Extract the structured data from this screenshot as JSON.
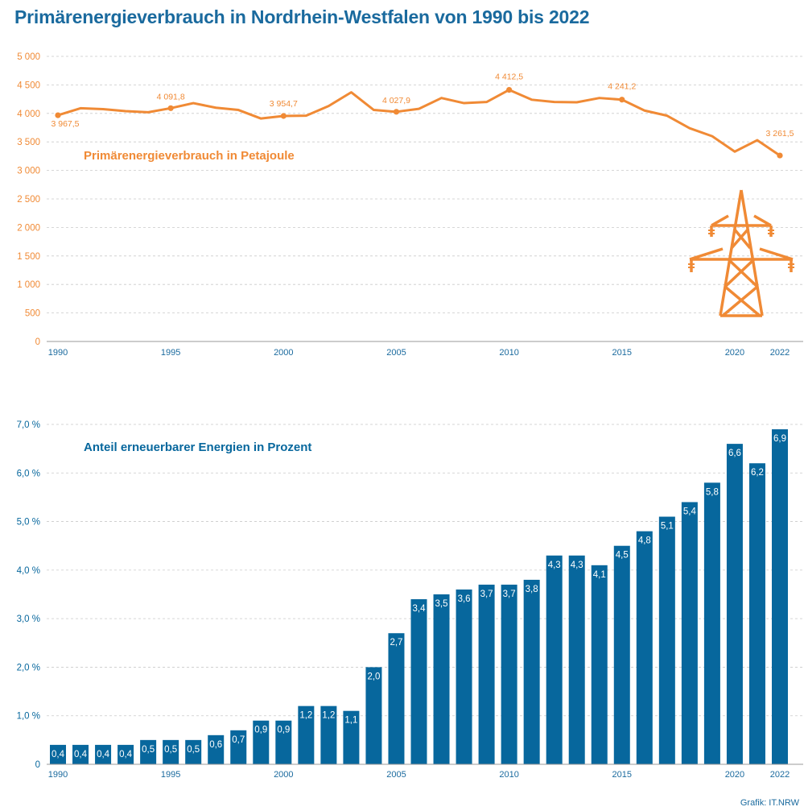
{
  "title": "Primärenergieverbrauch in Nordrhein-Westfalen von 1990 bis 2022",
  "credit": "Grafik: IT.NRW",
  "colors": {
    "orange": "#f08a35",
    "blue": "#07679d",
    "title": "#1a6a9e",
    "grid": "#c9c9c9"
  },
  "icon": "power-pylon-icon",
  "chart_data": [
    {
      "type": "line",
      "label": "Primärenergieverbrauch in Petajoule",
      "x": [
        1990,
        1991,
        1992,
        1993,
        1994,
        1995,
        1996,
        1997,
        1998,
        1999,
        2000,
        2001,
        2002,
        2003,
        2004,
        2005,
        2006,
        2007,
        2008,
        2009,
        2010,
        2011,
        2012,
        2013,
        2014,
        2015,
        2016,
        2017,
        2018,
        2019,
        2020,
        2021,
        2022
      ],
      "values": [
        3967.5,
        4090,
        4075,
        4040,
        4020,
        4091.8,
        4180,
        4100,
        4060,
        3910,
        3954.7,
        3960,
        4130,
        4370,
        4060,
        4027.9,
        4080,
        4270,
        4180,
        4200,
        4412.5,
        4240,
        4200,
        4195,
        4270,
        4241.2,
        4050,
        3960,
        3740,
        3600,
        3330,
        3530,
        3261.5
      ],
      "annotations": [
        {
          "year": 1990,
          "label": "3 967,5"
        },
        {
          "year": 1995,
          "label": "4 091,8"
        },
        {
          "year": 2000,
          "label": "3 954,7"
        },
        {
          "year": 2005,
          "label": "4 027,9"
        },
        {
          "year": 2010,
          "label": "4 412,5"
        },
        {
          "year": 2015,
          "label": "4 241,2"
        },
        {
          "year": 2022,
          "label": "3 261,5"
        }
      ],
      "yticks": [
        "0",
        "500",
        "1 000",
        "1 500",
        "2 000",
        "2 500",
        "3 000",
        "3 500",
        "4 000",
        "4 500",
        "5 000"
      ],
      "xticks": [
        "1990",
        "1995",
        "2000",
        "2005",
        "2010",
        "2015",
        "2020",
        "2022"
      ],
      "ylim": [
        0,
        5000
      ],
      "grid": true
    },
    {
      "type": "bar",
      "label": "Anteil erneuerbarer Energien in Prozent",
      "categories": [
        1990,
        1991,
        1992,
        1993,
        1994,
        1995,
        1996,
        1997,
        1998,
        1999,
        2000,
        2001,
        2002,
        2003,
        2004,
        2005,
        2006,
        2007,
        2008,
        2009,
        2010,
        2011,
        2012,
        2013,
        2014,
        2015,
        2016,
        2017,
        2018,
        2019,
        2020,
        2021,
        2022
      ],
      "values": [
        0.4,
        0.4,
        0.4,
        0.4,
        0.5,
        0.5,
        0.5,
        0.6,
        0.7,
        0.9,
        0.9,
        1.2,
        1.2,
        1.1,
        2.0,
        2.7,
        3.4,
        3.5,
        3.6,
        3.7,
        3.7,
        3.8,
        4.3,
        4.3,
        4.1,
        4.5,
        4.8,
        5.1,
        5.4,
        5.8,
        6.6,
        6.2,
        6.9
      ],
      "value_labels": [
        "0,4",
        "0,4",
        "0,4",
        "0,4",
        "0,5",
        "0,5",
        "0,5",
        "0,6",
        "0,7",
        "0,9",
        "0,9",
        "1,2",
        "1,2",
        "1,1",
        "2,0",
        "2,7",
        "3,4",
        "3,5",
        "3,6",
        "3,7",
        "3,7",
        "3,8",
        "4,3",
        "4,3",
        "4,1",
        "4,5",
        "4,8",
        "5,1",
        "5,4",
        "5,8",
        "6,6",
        "6,2",
        "6,9"
      ],
      "yticks": [
        "0",
        "1,0 %",
        "2,0 %",
        "3,0 %",
        "4,0 %",
        "5,0 %",
        "6,0 %",
        "7,0 %"
      ],
      "xticks": [
        "1990",
        "1995",
        "2000",
        "2005",
        "2010",
        "2015",
        "2020",
        "2022"
      ],
      "ylim": [
        0,
        7
      ],
      "grid": true
    }
  ]
}
